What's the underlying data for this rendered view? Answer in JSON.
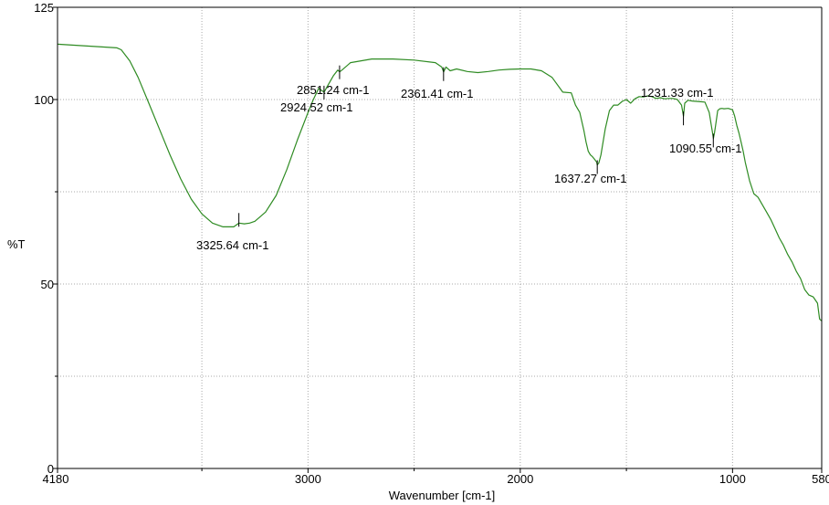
{
  "chart_data": {
    "type": "line",
    "title": "",
    "xlabel": "Wavenumber [cm-1]",
    "ylabel": "%T",
    "xlim": [
      4180,
      580
    ],
    "ylim": [
      0,
      125
    ],
    "x_reversed": true,
    "grid": true,
    "x_ticks": [
      {
        "value": 4180,
        "label": "4180"
      },
      {
        "value": 3000,
        "label": "3000"
      },
      {
        "value": 2000,
        "label": "2000"
      },
      {
        "value": 1000,
        "label": "1000"
      },
      {
        "value": 580,
        "label": "580"
      }
    ],
    "y_ticks": [
      {
        "value": 0,
        "label": "0"
      },
      {
        "value": 50,
        "label": "50"
      },
      {
        "value": 100,
        "label": "100"
      },
      {
        "value": 125,
        "label": "125"
      }
    ],
    "x_minor_grid": [
      3500,
      2500,
      1500
    ],
    "y_minor_grid": [
      25,
      75
    ],
    "line_color": "#2e8b22",
    "series": [
      {
        "x": [
          4180,
          3900,
          3880,
          3860,
          3840,
          3800,
          3750,
          3700,
          3650,
          3600,
          3550,
          3500,
          3450,
          3400,
          3380,
          3350,
          3325,
          3300,
          3275,
          3250,
          3200,
          3150,
          3100,
          3050,
          3000,
          2975,
          2950,
          2924,
          2910,
          2880,
          2860,
          2851,
          2840,
          2800,
          2700,
          2600,
          2500,
          2400,
          2370,
          2361,
          2350,
          2330,
          2300,
          2250,
          2200,
          2150,
          2100,
          2050,
          2000,
          1950,
          1900,
          1850,
          1800,
          1760,
          1740,
          1720,
          1700,
          1690,
          1680,
          1670,
          1660,
          1650,
          1640,
          1637,
          1630,
          1620,
          1600,
          1580,
          1560,
          1540,
          1520,
          1500,
          1480,
          1460,
          1440,
          1420,
          1400,
          1380,
          1360,
          1340,
          1320,
          1300,
          1280,
          1260,
          1240,
          1231,
          1225,
          1210,
          1190,
          1170,
          1150,
          1130,
          1110,
          1100,
          1090,
          1085,
          1080,
          1070,
          1060,
          1050,
          1040,
          1020,
          1000,
          990,
          980,
          970,
          960,
          950,
          940,
          920,
          900,
          880,
          860,
          840,
          820,
          800,
          780,
          760,
          740,
          720,
          700,
          680,
          660,
          640,
          620,
          600,
          590,
          580
        ],
        "y": [
          115,
          114,
          113.5,
          112,
          110.5,
          106,
          99,
          92,
          85,
          78.5,
          73,
          69,
          66.5,
          65.5,
          65.5,
          65.5,
          66.5,
          66.3,
          66.5,
          67,
          69.5,
          74,
          81,
          89,
          96.5,
          100,
          103,
          102,
          103.5,
          106.5,
          108,
          107.5,
          108,
          110,
          111,
          111,
          110.7,
          110,
          108.8,
          107.5,
          108.8,
          107.8,
          108.3,
          107.6,
          107.3,
          107.6,
          108,
          108.2,
          108.3,
          108.3,
          107.8,
          106,
          102,
          101.8,
          98.5,
          96.5,
          91.5,
          88.5,
          86,
          85,
          84.5,
          83.8,
          83,
          82.3,
          82.8,
          85,
          92,
          97,
          98.5,
          98.5,
          99.5,
          100,
          99,
          100.2,
          100.8,
          100.7,
          101,
          100.8,
          100.3,
          100.5,
          100.2,
          100.3,
          100.3,
          100,
          98.5,
          95.5,
          99,
          99.8,
          99.6,
          99.5,
          99.4,
          99.3,
          96.5,
          93,
          89.5,
          91,
          93,
          97,
          97.5,
          97.6,
          97.5,
          97.6,
          97.2,
          95.5,
          93,
          91,
          88.5,
          86,
          83,
          78,
          74.5,
          73.5,
          71.5,
          69.5,
          67.5,
          65,
          62.5,
          60.5,
          58,
          56,
          53.5,
          51.5,
          48.5,
          47,
          46.5,
          44.8,
          40.5,
          40
        ]
      }
    ],
    "annotations": [
      {
        "x": 3325.64,
        "y": 68,
        "label": "3325.64 cm-1"
      },
      {
        "x": 2924.52,
        "y": 102.5,
        "label": "2924.52 cm-1"
      },
      {
        "x": 2851.24,
        "y": 108,
        "label": "2851.24 cm-1"
      },
      {
        "x": 2361.41,
        "y": 107.5,
        "label": "2361.41 cm-1"
      },
      {
        "x": 1637.27,
        "y": 82.3,
        "label": "1637.27 cm-1"
      },
      {
        "x": 1231.33,
        "y": 95.5,
        "label": "1231.33 cm-1"
      },
      {
        "x": 1090.55,
        "y": 89.5,
        "label": "1090.55 cm-1"
      }
    ]
  }
}
